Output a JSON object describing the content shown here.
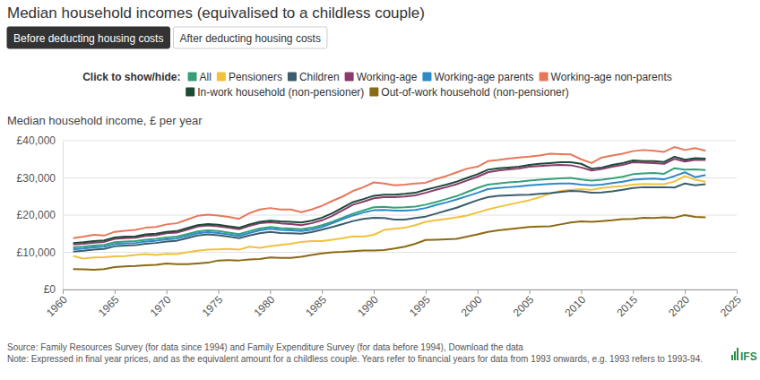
{
  "chart_data": {
    "type": "line",
    "title": "Median household incomes (equivalised to a childless couple)",
    "buttons": [
      "Before deducting housing costs",
      "After deducting housing costs"
    ],
    "legend_prompt": "Click to show/hide:",
    "y_label": "Median household income, £ per year",
    "source": "Source: Family Resources Survey (for data since 1994) and Family Expenditure Survey (for data before 1994), Download the data",
    "note": "Note: Expressed in final year prices, and as the equivalent amount for a childless couple. Years refer to financial years for data from 1993 onwards, e.g. 1993 refers to 1993-94.",
    "logo": "IFS",
    "legend": "top",
    "grid": true,
    "xlim": [
      1960,
      2025
    ],
    "xticks": [
      1960,
      1965,
      1970,
      1975,
      1980,
      1985,
      1990,
      1995,
      2000,
      2005,
      2010,
      2015,
      2020,
      2025
    ],
    "ylim": [
      0,
      40000
    ],
    "yticks": [
      {
        "value": 0,
        "label": "£0"
      },
      {
        "value": 10000,
        "label": "£10,000"
      },
      {
        "value": 20000,
        "label": "£20,000"
      },
      {
        "value": 30000,
        "label": "£30,000"
      },
      {
        "value": 40000,
        "label": "£40,000"
      }
    ],
    "x": [
      1961,
      1962,
      1963,
      1964,
      1965,
      1966,
      1967,
      1968,
      1969,
      1970,
      1971,
      1972,
      1973,
      1974,
      1975,
      1976,
      1977,
      1978,
      1979,
      1980,
      1981,
      1982,
      1983,
      1984,
      1985,
      1986,
      1987,
      1988,
      1989,
      1990,
      1991,
      1992,
      1993,
      1994,
      1995,
      1996,
      1997,
      1998,
      1999,
      2000,
      2001,
      2002,
      2003,
      2004,
      2005,
      2006,
      2007,
      2008,
      2009,
      2010,
      2011,
      2012,
      2013,
      2014,
      2015,
      2016,
      2017,
      2018,
      2019,
      2020,
      2021,
      2022
    ],
    "series": [
      {
        "name": "All",
        "color": "#34a07a",
        "values": [
          11300,
          11500,
          11800,
          12000,
          12700,
          12900,
          13000,
          13400,
          13600,
          14000,
          14200,
          14900,
          15600,
          15900,
          15700,
          15300,
          14900,
          15700,
          16400,
          16800,
          16500,
          16400,
          16200,
          16600,
          17300,
          18200,
          19300,
          20400,
          21300,
          22100,
          22200,
          22000,
          22100,
          22300,
          22800,
          23500,
          24300,
          25100,
          26200,
          27300,
          28200,
          28500,
          28800,
          29000,
          29300,
          29500,
          29700,
          29900,
          30000,
          29600,
          29300,
          29500,
          29900,
          30300,
          31000,
          31200,
          31300,
          31100,
          32600,
          32200,
          32300,
          32100
        ]
      },
      {
        "name": "Pensioners",
        "color": "#f0c23b",
        "values": [
          9000,
          8300,
          8600,
          8700,
          8900,
          9000,
          9300,
          9500,
          9300,
          9600,
          9500,
          10000,
          10400,
          10700,
          10800,
          10900,
          10700,
          11500,
          11200,
          11600,
          12000,
          12300,
          12800,
          13000,
          13000,
          13400,
          13800,
          14300,
          14200,
          14700,
          16000,
          16300,
          16600,
          17300,
          18200,
          18600,
          19000,
          19400,
          19900,
          20700,
          21500,
          22200,
          22800,
          23400,
          24000,
          24800,
          25800,
          26500,
          26800,
          27000,
          26800,
          27300,
          27600,
          27800,
          28200,
          28400,
          28300,
          28300,
          29000,
          30500,
          29500,
          29000
        ]
      },
      {
        "name": "Children",
        "color": "#3b5d6e",
        "values": [
          10200,
          10400,
          10700,
          10900,
          11600,
          11800,
          11900,
          12300,
          12500,
          12900,
          13100,
          13800,
          14500,
          14800,
          14600,
          14200,
          13800,
          14500,
          15100,
          15500,
          15200,
          15100,
          15000,
          15400,
          16100,
          16800,
          17600,
          18400,
          19000,
          19300,
          19200,
          18800,
          18800,
          19200,
          19600,
          20400,
          21200,
          22000,
          23000,
          24000,
          24800,
          25200,
          25300,
          25400,
          25500,
          25700,
          25900,
          26200,
          26500,
          26400,
          26000,
          26100,
          26400,
          26800,
          27300,
          27500,
          27500,
          27500,
          27400,
          28500,
          28000,
          28300
        ]
      },
      {
        "name": "Working-age",
        "color": "#8c3a6e",
        "values": [
          12100,
          12300,
          12600,
          12800,
          13600,
          13800,
          13900,
          14400,
          14600,
          15100,
          15300,
          16100,
          16900,
          17200,
          17000,
          16600,
          16200,
          17100,
          17800,
          18100,
          17800,
          17600,
          17300,
          17800,
          18600,
          19800,
          21300,
          22800,
          23600,
          24500,
          24800,
          24800,
          25000,
          25300,
          26000,
          26800,
          27500,
          28300,
          29300,
          30300,
          31500,
          32000,
          32300,
          32500,
          33000,
          33200,
          33400,
          33500,
          33400,
          32800,
          32000,
          32400,
          33000,
          33500,
          34200,
          34100,
          34000,
          33800,
          35100,
          34400,
          34900,
          34800
        ]
      },
      {
        "name": "Working-age parents",
        "color": "#2d8ac9",
        "values": [
          10800,
          11000,
          11300,
          11500,
          12200,
          12400,
          12500,
          12900,
          13100,
          13500,
          13700,
          14400,
          15100,
          15400,
          15200,
          14800,
          14400,
          15200,
          15900,
          16300,
          16000,
          15900,
          15700,
          16100,
          16800,
          17800,
          18900,
          19900,
          20700,
          21300,
          21400,
          21200,
          21200,
          21400,
          21900,
          22700,
          23400,
          24200,
          25100,
          26000,
          27000,
          27300,
          27500,
          27700,
          28000,
          28200,
          28400,
          28500,
          28500,
          28200,
          28000,
          28200,
          28600,
          29000,
          29500,
          29700,
          29800,
          29600,
          30500,
          31500,
          30200,
          30800
        ]
      },
      {
        "name": "Working-age non-parents",
        "color": "#e8775a",
        "values": [
          13800,
          14200,
          14700,
          14500,
          15500,
          15800,
          16000,
          16600,
          16800,
          17500,
          17800,
          18800,
          19800,
          20100,
          19900,
          19500,
          19000,
          20500,
          21500,
          21900,
          21500,
          21500,
          20800,
          21500,
          22500,
          23800,
          25000,
          26500,
          27500,
          28800,
          28500,
          28000,
          28200,
          28500,
          28700,
          29700,
          30500,
          31500,
          32500,
          33000,
          34500,
          34800,
          35200,
          35500,
          35700,
          36000,
          36500,
          36400,
          36300,
          35000,
          34000,
          35500,
          36000,
          36500,
          37200,
          37500,
          37300,
          37000,
          38300,
          37500,
          38000,
          37300
        ]
      },
      {
        "name": "In-work household (non-pensioner)",
        "color": "#1c4a36",
        "values": [
          12500,
          12700,
          13000,
          13200,
          14000,
          14200,
          14300,
          14800,
          15000,
          15500,
          15700,
          16500,
          17300,
          17600,
          17400,
          17000,
          16600,
          17500,
          18200,
          18500,
          18300,
          18200,
          18000,
          18500,
          19300,
          20500,
          22000,
          23500,
          24300,
          25200,
          25500,
          25500,
          25700,
          26000,
          26800,
          27500,
          28200,
          29000,
          30000,
          31000,
          32200,
          32600,
          32800,
          33000,
          33500,
          33800,
          34000,
          34200,
          34200,
          33800,
          32500,
          32800,
          33500,
          34000,
          34700,
          34500,
          34500,
          34300,
          35700,
          34900,
          35300,
          35200
        ]
      },
      {
        "name": "Out-of-work household (non-pensioner)",
        "color": "#8a6a14",
        "values": [
          5500,
          5400,
          5300,
          5500,
          6000,
          6200,
          6300,
          6500,
          6600,
          7000,
          6800,
          6800,
          7000,
          7200,
          7800,
          7900,
          7800,
          8100,
          8200,
          8600,
          8500,
          8500,
          8800,
          9300,
          9700,
          10000,
          10100,
          10300,
          10500,
          10500,
          10600,
          11000,
          11500,
          12300,
          13300,
          13400,
          13500,
          13600,
          14200,
          14800,
          15500,
          15900,
          16200,
          16500,
          16800,
          16900,
          17000,
          17500,
          18000,
          18300,
          18200,
          18400,
          18600,
          18900,
          19000,
          19300,
          19200,
          19400,
          19300,
          20000,
          19500,
          19400
        ]
      }
    ]
  }
}
